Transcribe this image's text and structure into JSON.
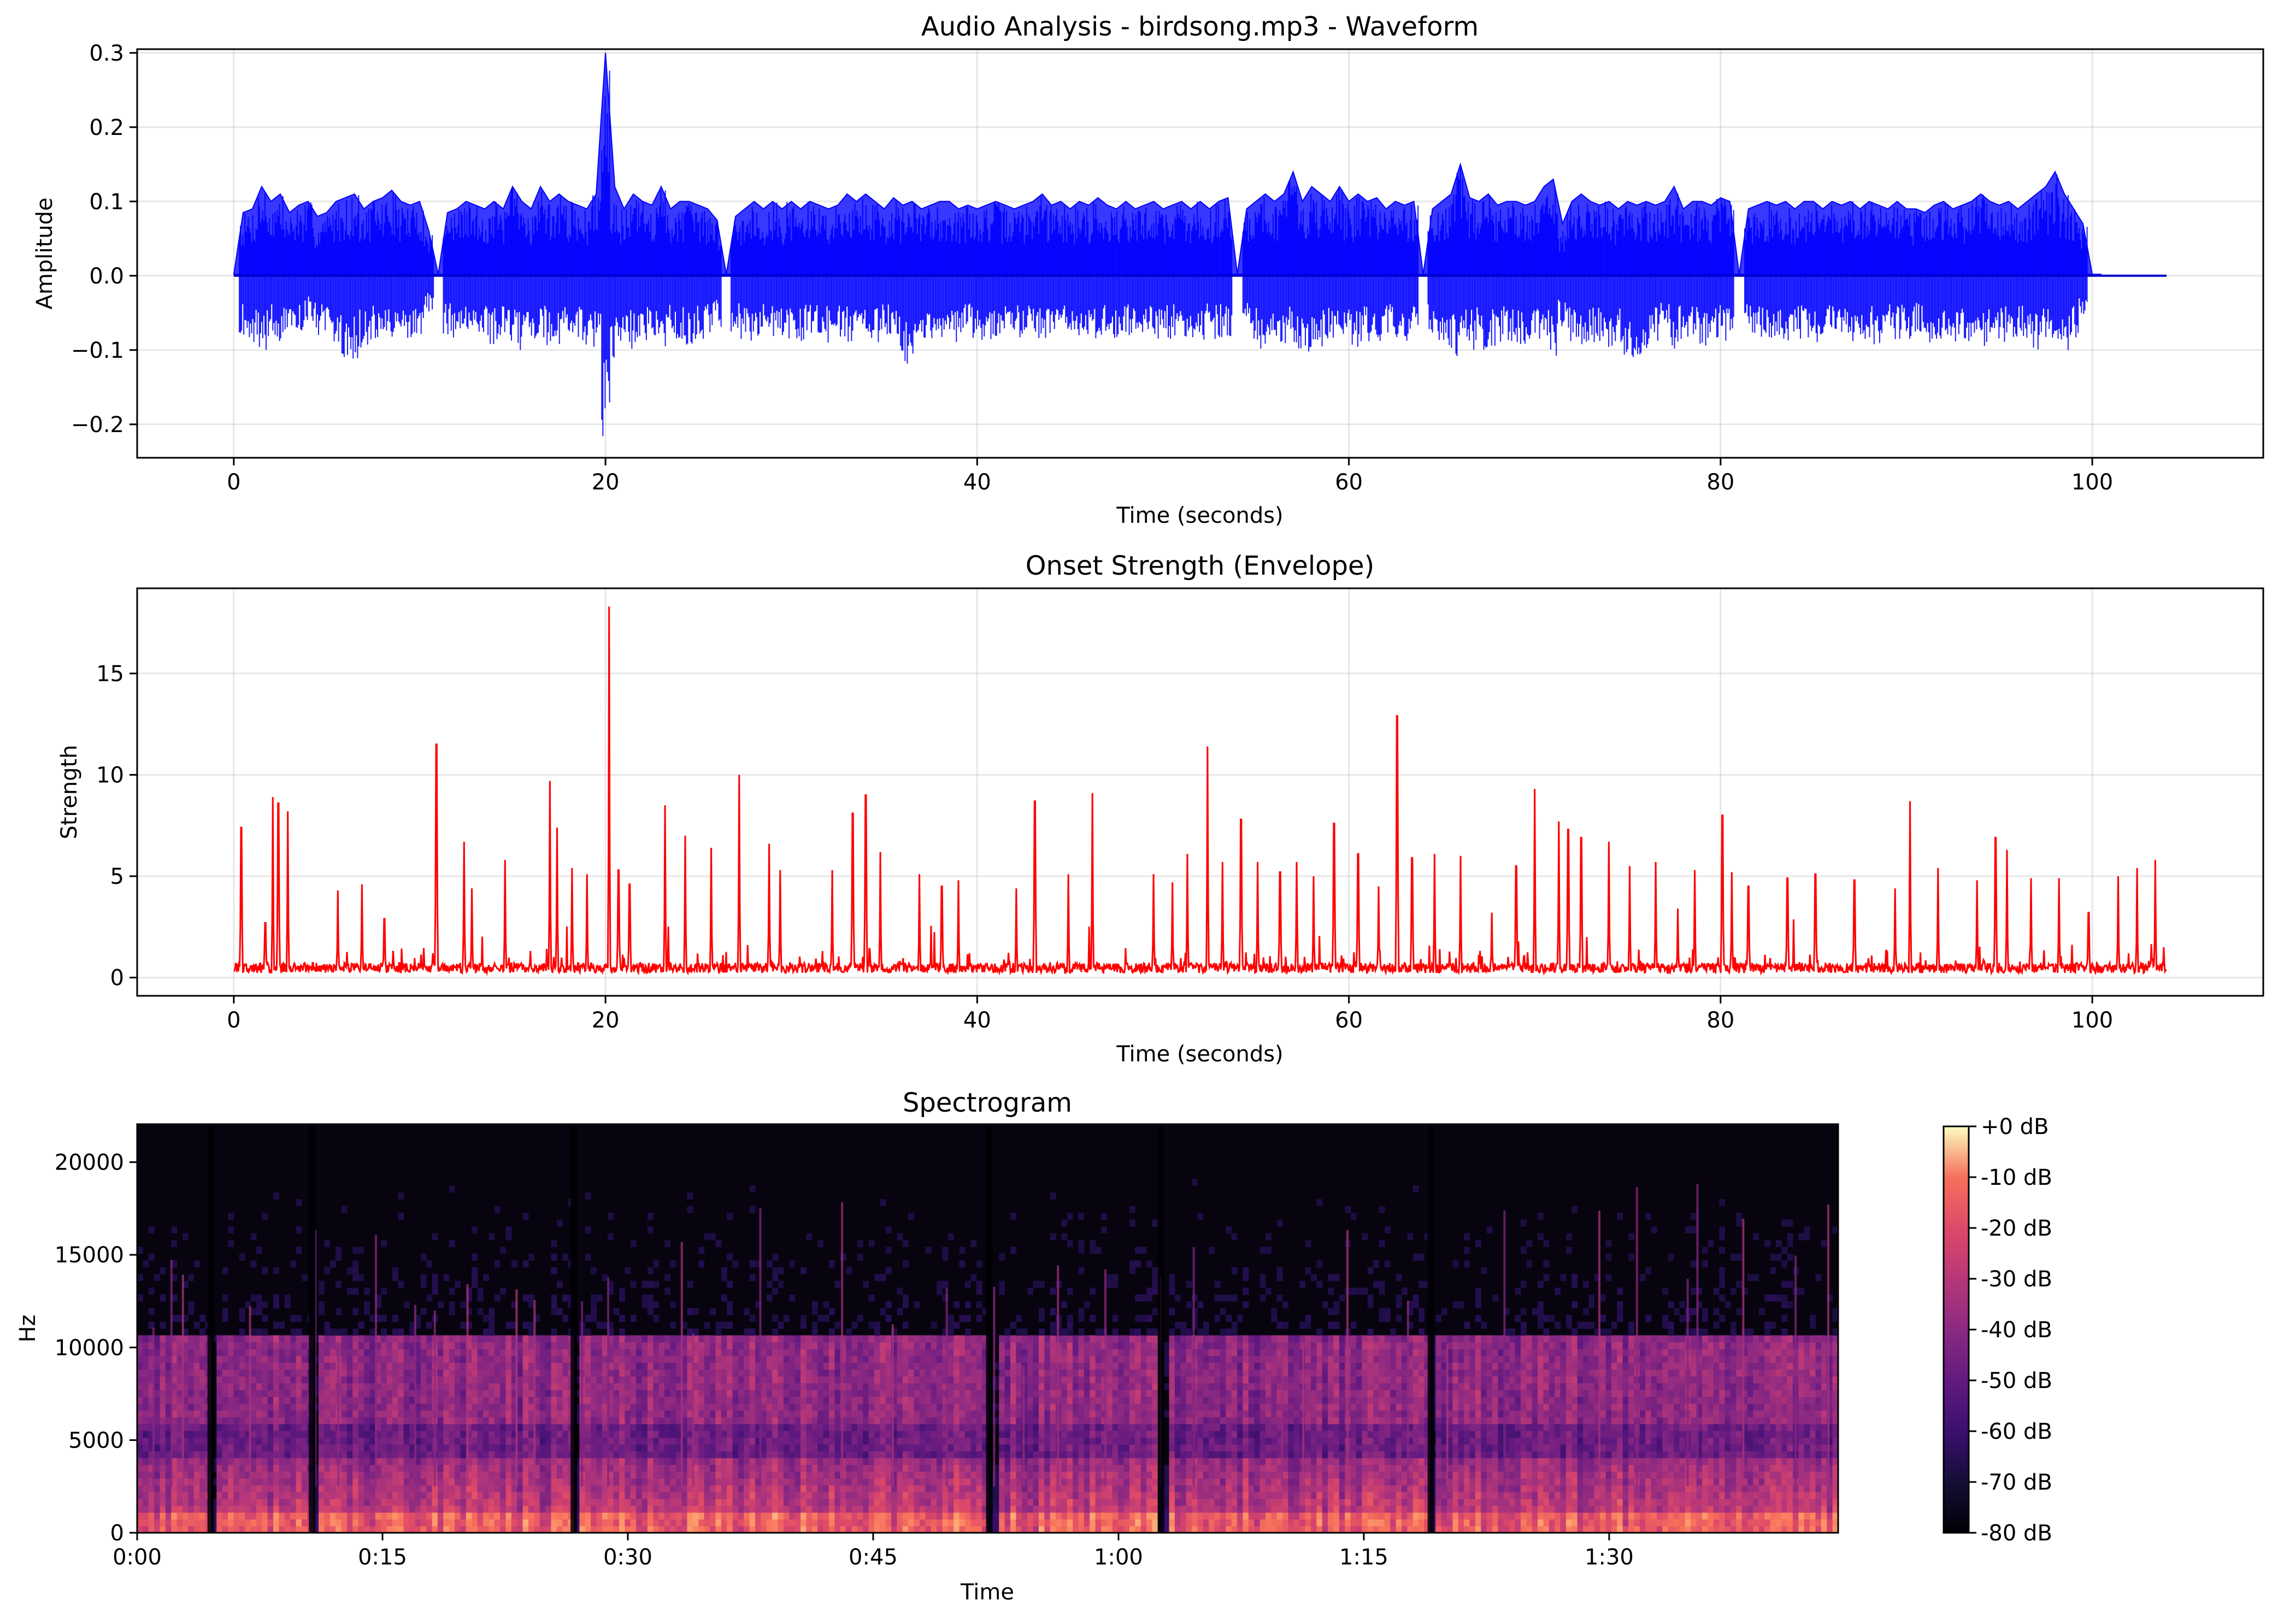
{
  "chart_data": [
    {
      "type": "line",
      "title": "Audio Analysis - birdsong.mp3 - Waveform",
      "xlabel": "Time (seconds)",
      "ylabel": "Amplitude",
      "xlim": [
        -5.2,
        109.2
      ],
      "ylim": [
        -0.245,
        0.305
      ],
      "xticks": [
        0,
        20,
        40,
        60,
        80,
        100
      ],
      "yticks": [
        -0.2,
        -0.1,
        0.0,
        0.1,
        0.2,
        0.3
      ],
      "ytick_labels": [
        "−0.2",
        "−0.1",
        "0.0",
        "0.1",
        "0.2",
        "0.3"
      ],
      "grid": true,
      "color": "#0000ff",
      "duration": 104,
      "series": [
        {
          "x": [
            0,
            0.5,
            1,
            1.5,
            2,
            2.5,
            3,
            3.5,
            4,
            4.5,
            5,
            5.5,
            6,
            6.5,
            7,
            7.5,
            8,
            8.5,
            9,
            9.5,
            10,
            10.5,
            11,
            11.5,
            12,
            12.5,
            13,
            13.5,
            14,
            14.5,
            15,
            15.5,
            16,
            16.5,
            17,
            17.5,
            18,
            18.5,
            19,
            19.5,
            20,
            20.5,
            21,
            21.5,
            22,
            22.5,
            23,
            23.5,
            24,
            24.5,
            25,
            25.5,
            26,
            26.5,
            27,
            27.5,
            28,
            28.5,
            29,
            29.5,
            30,
            30.5,
            31,
            31.5,
            32,
            32.5,
            33,
            33.5,
            34,
            34.5,
            35,
            35.5,
            36,
            36.5,
            37,
            37.5,
            38,
            38.5,
            39,
            39.5,
            40,
            40.5,
            41,
            41.5,
            42,
            42.5,
            43,
            43.5,
            44,
            44.5,
            45,
            45.5,
            46,
            46.5,
            47,
            47.5,
            48,
            48.5,
            49,
            49.5,
            50,
            50.5,
            51,
            51.5,
            52,
            52.5,
            53,
            53.5,
            54,
            54.5,
            55,
            55.5,
            56,
            56.5,
            57,
            57.5,
            58,
            58.5,
            59,
            59.5,
            60,
            60.5,
            61,
            61.5,
            62,
            62.5,
            63,
            63.5,
            64,
            64.5,
            65,
            65.5,
            66,
            66.5,
            67,
            67.5,
            68,
            68.5,
            69,
            69.5,
            70,
            70.5,
            71,
            71.5,
            72,
            72.5,
            73,
            73.5,
            74,
            74.5,
            75,
            75.5,
            76,
            76.5,
            77,
            77.5,
            78,
            78.5,
            79,
            79.5,
            80,
            80.5,
            81,
            81.5,
            82,
            82.5,
            83,
            83.5,
            84,
            84.5,
            85,
            85.5,
            86,
            86.5,
            87,
            87.5,
            88,
            88.5,
            89,
            89.5,
            90,
            90.5,
            91,
            91.5,
            92,
            92.5,
            93,
            93.5,
            94,
            94.5,
            95,
            95.5,
            96,
            96.5,
            97,
            97.5,
            98,
            98.5,
            99,
            99.5,
            100,
            100.5,
            101,
            101.5,
            102,
            102.5,
            103,
            103.5,
            104
          ],
          "max": [
            0.002,
            0.085,
            0.09,
            0.12,
            0.1,
            0.11,
            0.085,
            0.095,
            0.1,
            0.08,
            0.085,
            0.1,
            0.105,
            0.11,
            0.09,
            0.1,
            0.105,
            0.115,
            0.1,
            0.095,
            0.1,
            0.06,
            0.002,
            0.085,
            0.09,
            0.1,
            0.095,
            0.09,
            0.1,
            0.09,
            0.12,
            0.1,
            0.09,
            0.12,
            0.1,
            0.11,
            0.1,
            0.095,
            0.09,
            0.11,
            0.3,
            0.12,
            0.09,
            0.11,
            0.1,
            0.095,
            0.12,
            0.09,
            0.1,
            0.1,
            0.095,
            0.09,
            0.075,
            0.002,
            0.08,
            0.09,
            0.1,
            0.09,
            0.1,
            0.09,
            0.1,
            0.09,
            0.1,
            0.095,
            0.09,
            0.095,
            0.11,
            0.1,
            0.11,
            0.1,
            0.09,
            0.105,
            0.095,
            0.1,
            0.09,
            0.095,
            0.1,
            0.1,
            0.09,
            0.095,
            0.09,
            0.095,
            0.1,
            0.095,
            0.09,
            0.095,
            0.1,
            0.11,
            0.095,
            0.1,
            0.09,
            0.1,
            0.095,
            0.105,
            0.095,
            0.09,
            0.1,
            0.09,
            0.095,
            0.1,
            0.09,
            0.095,
            0.1,
            0.09,
            0.1,
            0.09,
            0.1,
            0.105,
            0.002,
            0.09,
            0.1,
            0.11,
            0.1,
            0.11,
            0.14,
            0.1,
            0.12,
            0.11,
            0.1,
            0.12,
            0.1,
            0.11,
            0.1,
            0.105,
            0.09,
            0.1,
            0.095,
            0.1,
            0.002,
            0.09,
            0.1,
            0.11,
            0.15,
            0.105,
            0.1,
            0.11,
            0.095,
            0.1,
            0.1,
            0.095,
            0.1,
            0.12,
            0.13,
            0.07,
            0.1,
            0.11,
            0.1,
            0.095,
            0.1,
            0.09,
            0.1,
            0.095,
            0.1,
            0.095,
            0.1,
            0.12,
            0.09,
            0.1,
            0.1,
            0.095,
            0.105,
            0.1,
            0.002,
            0.09,
            0.095,
            0.1,
            0.095,
            0.1,
            0.09,
            0.1,
            0.1,
            0.09,
            0.1,
            0.095,
            0.1,
            0.09,
            0.1,
            0.095,
            0.09,
            0.1,
            0.09,
            0.09,
            0.085,
            0.095,
            0.1,
            0.09,
            0.095,
            0.1,
            0.11,
            0.1,
            0.095,
            0.1,
            0.09,
            0.1,
            0.11,
            0.12,
            0.14,
            0.11,
            0.09,
            0.07,
            0.002,
            0.002
          ],
          "min": [
            -0.002,
            -0.08,
            -0.09,
            -0.1,
            -0.085,
            -0.09,
            -0.08,
            -0.08,
            -0.06,
            -0.08,
            -0.085,
            -0.1,
            -0.11,
            -0.12,
            -0.1,
            -0.09,
            -0.085,
            -0.09,
            -0.095,
            -0.09,
            -0.08,
            -0.05,
            -0.002,
            -0.08,
            -0.085,
            -0.09,
            -0.09,
            -0.085,
            -0.095,
            -0.08,
            -0.09,
            -0.1,
            -0.085,
            -0.09,
            -0.095,
            -0.1,
            -0.08,
            -0.09,
            -0.095,
            -0.1,
            -0.22,
            -0.12,
            -0.09,
            -0.1,
            -0.095,
            -0.09,
            -0.1,
            -0.085,
            -0.09,
            -0.095,
            -0.09,
            -0.085,
            -0.07,
            -0.002,
            -0.08,
            -0.085,
            -0.09,
            -0.085,
            -0.09,
            -0.08,
            -0.085,
            -0.09,
            -0.08,
            -0.085,
            -0.09,
            -0.085,
            -0.09,
            -0.085,
            -0.1,
            -0.09,
            -0.08,
            -0.1,
            -0.12,
            -0.11,
            -0.09,
            -0.085,
            -0.09,
            -0.085,
            -0.09,
            -0.08,
            -0.085,
            -0.09,
            -0.085,
            -0.08,
            -0.085,
            -0.09,
            -0.085,
            -0.09,
            -0.085,
            -0.08,
            -0.085,
            -0.09,
            -0.085,
            -0.09,
            -0.085,
            -0.09,
            -0.08,
            -0.085,
            -0.09,
            -0.085,
            -0.08,
            -0.085,
            -0.09,
            -0.085,
            -0.09,
            -0.08,
            -0.085,
            -0.09,
            -0.002,
            -0.08,
            -0.09,
            -0.1,
            -0.11,
            -0.1,
            -0.09,
            -0.1,
            -0.11,
            -0.1,
            -0.09,
            -0.1,
            -0.095,
            -0.1,
            -0.09,
            -0.095,
            -0.08,
            -0.085,
            -0.09,
            -0.085,
            -0.002,
            -0.085,
            -0.09,
            -0.1,
            -0.11,
            -0.1,
            -0.09,
            -0.1,
            -0.095,
            -0.09,
            -0.1,
            -0.095,
            -0.09,
            -0.1,
            -0.11,
            -0.07,
            -0.09,
            -0.1,
            -0.095,
            -0.09,
            -0.1,
            -0.095,
            -0.11,
            -0.14,
            -0.1,
            -0.09,
            -0.08,
            -0.1,
            -0.085,
            -0.09,
            -0.095,
            -0.09,
            -0.085,
            -0.09,
            -0.002,
            -0.08,
            -0.085,
            -0.09,
            -0.085,
            -0.09,
            -0.08,
            -0.085,
            -0.09,
            -0.085,
            -0.08,
            -0.085,
            -0.09,
            -0.085,
            -0.09,
            -0.1,
            -0.085,
            -0.09,
            -0.085,
            -0.08,
            -0.085,
            -0.09,
            -0.085,
            -0.09,
            -0.085,
            -0.09,
            -0.1,
            -0.09,
            -0.085,
            -0.09,
            -0.085,
            -0.09,
            -0.1,
            -0.085,
            -0.09,
            -0.1,
            -0.085,
            -0.06,
            -0.002,
            -0.002
          ]
        }
      ]
    },
    {
      "type": "line",
      "title": "Onset Strength (Envelope)",
      "xlabel": "Time (seconds)",
      "ylabel": "Strength",
      "xlim": [
        -5.2,
        109.2
      ],
      "ylim": [
        -0.9,
        19.2
      ],
      "xticks": [
        0,
        20,
        40,
        60,
        80,
        100
      ],
      "yticks": [
        0,
        5,
        10,
        15
      ],
      "grid": true,
      "color": "#ff0000",
      "duration": 104,
      "baseline": 0.5,
      "series": [
        {
          "peaks_x": [
            0.4,
            1.7,
            2.1,
            2.4,
            2.9,
            5.6,
            6.9,
            8.1,
            10.9,
            12.4,
            12.8,
            14.6,
            17.0,
            17.4,
            18.2,
            19.0,
            20.2,
            20.7,
            21.3,
            23.2,
            24.3,
            25.7,
            27.2,
            28.8,
            29.4,
            32.2,
            33.3,
            34.0,
            34.8,
            36.9,
            38.1,
            39.0,
            42.1,
            43.1,
            44.9,
            46.2,
            49.5,
            50.5,
            51.3,
            52.4,
            53.2,
            54.2,
            55.1,
            56.3,
            57.2,
            58.1,
            59.2,
            60.5,
            61.6,
            62.6,
            63.4,
            64.6,
            66.0,
            67.7,
            69.0,
            70.0,
            71.3,
            71.8,
            72.5,
            74.0,
            75.1,
            76.5,
            77.7,
            78.6,
            80.1,
            80.6,
            81.5,
            83.6,
            85.1,
            87.2,
            89.4,
            90.2,
            91.7,
            93.8,
            94.8,
            95.4,
            96.7,
            98.2,
            99.8,
            101.4,
            102.4,
            103.4
          ],
          "peaks_y": [
            7.4,
            2.7,
            8.9,
            8.6,
            8.2,
            4.3,
            4.6,
            2.9,
            11.5,
            6.7,
            4.4,
            5.8,
            9.7,
            7.4,
            5.4,
            5.1,
            18.3,
            5.3,
            4.6,
            8.5,
            7.0,
            6.4,
            10.0,
            6.6,
            5.3,
            5.3,
            8.1,
            9.0,
            6.2,
            5.1,
            4.5,
            4.8,
            4.4,
            8.7,
            5.1,
            9.1,
            5.1,
            4.7,
            6.1,
            11.4,
            5.7,
            7.8,
            5.7,
            5.2,
            5.7,
            5.0,
            7.6,
            6.1,
            4.5,
            12.9,
            5.9,
            6.1,
            6.0,
            3.2,
            5.5,
            9.3,
            7.7,
            7.3,
            6.9,
            6.7,
            5.5,
            5.7,
            3.4,
            5.3,
            8.0,
            5.2,
            4.5,
            4.9,
            5.1,
            4.8,
            4.4,
            8.7,
            5.4,
            4.8,
            6.9,
            6.3,
            4.9,
            4.9,
            3.2,
            5.0,
            5.4,
            5.8
          ]
        }
      ]
    },
    {
      "type": "heatmap",
      "title": "Spectrogram",
      "xlabel": "Time",
      "ylabel": "Hz",
      "colormap": "magma",
      "xlim": [
        0,
        104
      ],
      "ylim": [
        0,
        22050
      ],
      "xticks": [
        0,
        15,
        30,
        45,
        60,
        75,
        90
      ],
      "xtick_labels": [
        "0:00",
        "0:15",
        "0:30",
        "0:45",
        "1:00",
        "1:15",
        "1:30"
      ],
      "yticks": [
        0,
        5000,
        10000,
        15000,
        20000
      ],
      "colorbar": {
        "range_db": [
          -80,
          0
        ],
        "ticks": [
          0,
          -10,
          -20,
          -30,
          -40,
          -50,
          -60,
          -70,
          -80
        ],
        "tick_labels": [
          "+0 dB",
          "-10 dB",
          "-20 dB",
          "-30 dB",
          "-40 dB",
          "-50 dB",
          "-60 dB",
          "-70 dB",
          "-80 dB"
        ]
      },
      "gaps_seconds": [
        4.5,
        10.7,
        26.7,
        52.1,
        62.6,
        79.1
      ]
    }
  ]
}
